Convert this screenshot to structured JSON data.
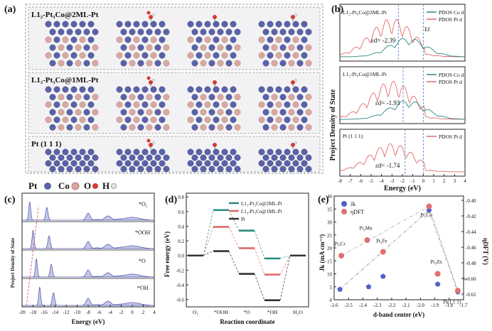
{
  "panel_a": {
    "tag": "(a)",
    "rows": [
      {
        "label": "L1₂-Pt₃Co@2ML-Pt"
      },
      {
        "label": "L1₂-Pt₃Co@1ML-Pt"
      },
      {
        "label": "Pt (1 1 1)"
      }
    ],
    "legend": [
      {
        "label": "Pt",
        "color": "#5a63a8"
      },
      {
        "label": "Co",
        "color": "#d9a9a0"
      },
      {
        "label": "O",
        "color": "#d43a2e"
      },
      {
        "label": "H",
        "color": "#dcdcdc"
      }
    ]
  },
  "chart_data": [
    {
      "panel": "(b)",
      "type": "line",
      "ylabel": "Project Density of State",
      "xlabel": "Energy (eV)",
      "xlim": [
        -8,
        4
      ],
      "xticks": [
        "-8",
        "-7",
        "-6",
        "-5",
        "-4",
        "-3",
        "-2",
        "-1",
        "0",
        "1",
        "2",
        "3",
        "4"
      ],
      "subplots": [
        {
          "label": "L1₂-Pt₃Co@2ML-Pt",
          "legend": [
            "PDOS Co d",
            "PDOS Pt d"
          ],
          "annotation": "εd= -2.39",
          "ef_label": "Ef",
          "center": -2.39
        },
        {
          "label": "L1₂-Pt₃Co@1ML-Pt",
          "legend": [
            "PDOS Co d",
            "PDOS Pt d"
          ],
          "annotation": "εd= -1.93",
          "center": -1.93
        },
        {
          "label": "Pt (1 1 1)",
          "legend": [
            "PDOS Pt d"
          ],
          "annotation": "εd= -1.74",
          "center": -1.74
        }
      ]
    },
    {
      "panel": "(c)",
      "type": "area",
      "ylabel": "Project Density of State",
      "xlabel": "Energy (eV)",
      "xlim": [
        -20,
        4
      ],
      "xticks": [
        "-20",
        "-18",
        "-16",
        "-14",
        "-12",
        "-10",
        "-8",
        "-6",
        "-4",
        "-2",
        "0",
        "2",
        "4"
      ],
      "subplots": [
        {
          "label": "*O₂"
        },
        {
          "label": "*OOH"
        },
        {
          "label": "*O"
        },
        {
          "label": "*OH"
        }
      ]
    },
    {
      "panel": "(d)",
      "type": "line",
      "ylabel": "Free energy (eV)",
      "xlabel": "Reaction coordinate",
      "categories": [
        "O₂",
        "*OOH",
        "*O",
        "*OH",
        "H₂O"
      ],
      "yticks": [
        "0.8",
        "0.6",
        "0.4",
        "0.2",
        "0.0",
        "-0.2",
        "-0.4",
        "-0.6"
      ],
      "ylim": [
        -0.7,
        0.85
      ],
      "series": [
        {
          "name": "L1₂-Pt₃Co@2ML-Pt",
          "color": "#2a8a80",
          "values": [
            0,
            0.62,
            0.34,
            -0.04,
            0
          ]
        },
        {
          "name": "L1₂-Pt₃Co@1ML-Pt",
          "color": "#e06a6a",
          "values": [
            0,
            0.39,
            0.1,
            -0.26,
            0
          ]
        },
        {
          "name": "Pt",
          "color": "#333333",
          "values": [
            0,
            0.06,
            -0.25,
            -0.61,
            0
          ]
        }
      ]
    },
    {
      "panel": "(e)",
      "type": "scatter",
      "xlabel": "d-band center (eV)",
      "ylabel": "Jk (mA cm⁻²)",
      "ylabel_right": "ηDFT (V)",
      "xlim": [
        -2.6,
        -1.7
      ],
      "ylim": [
        0,
        40
      ],
      "ylim_right": [
        -0.63,
        -0.39
      ],
      "xticks": [
        "-2.6",
        "-2.5",
        "-2.4",
        "-2.3",
        "-2.2",
        "-2.1",
        "-2.0",
        "-1.9",
        "-1.8",
        "-1.7"
      ],
      "yticks": [
        "0",
        "5",
        "10",
        "15",
        "20",
        "25",
        "30",
        "35",
        "40"
      ],
      "yticks_right": [
        "-0.40",
        "-0.42",
        "-0.44",
        "-0.46",
        "-0.48",
        "-0.60",
        "-0.62"
      ],
      "legend": [
        "Jk",
        "ηDFT"
      ],
      "series": [
        {
          "name": "Jk",
          "color": "#5060c8",
          "points": [
            [
              -2.56,
              4.0
            ],
            [
              -2.36,
              5.0
            ],
            [
              -2.26,
              9.0
            ],
            [
              -1.94,
              34.5
            ],
            [
              -1.88,
              6.0
            ],
            [
              -1.74,
              3.0
            ]
          ]
        },
        {
          "name": "ηDFT",
          "color": "#e07070",
          "points": [
            [
              -2.55,
              17.0
            ],
            [
              -2.37,
              23.0
            ],
            [
              -2.26,
              18.5
            ],
            [
              -1.94,
              36.0
            ],
            [
              -1.88,
              10.0
            ],
            [
              -1.74,
              3.5
            ]
          ]
        }
      ],
      "point_labels": [
        "Pt₃Cr",
        "Pt₃Mn",
        "Pt₃Fe",
        "Pt₃Co",
        "Pt₃Zn",
        "Pt(1 1 1)"
      ]
    }
  ]
}
